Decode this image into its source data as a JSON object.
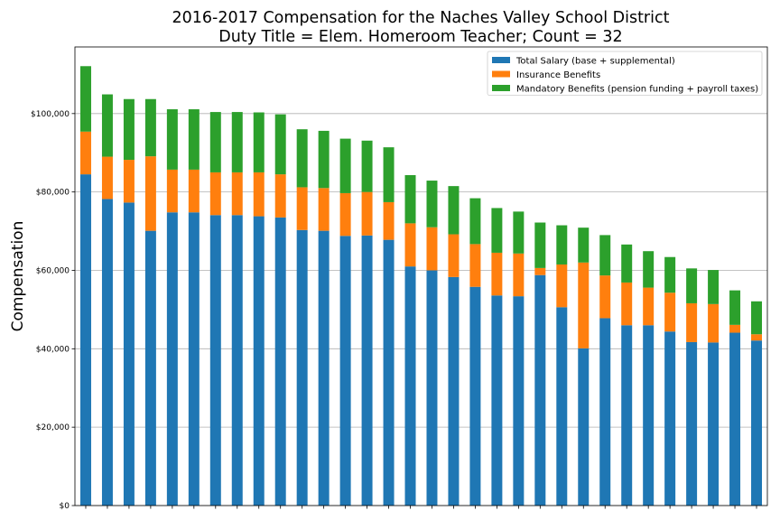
{
  "chart_data": {
    "type": "bar",
    "stacked": true,
    "title": "2016-2017 Compensation for the Naches Valley School District",
    "subtitle": "Duty Title = Elem. Homeroom Teacher; Count = 32",
    "xlabel": "",
    "ylabel": "Compensation",
    "ylim": [
      0,
      117000
    ],
    "yticks": [
      0,
      20000,
      40000,
      60000,
      80000,
      100000
    ],
    "ytick_labels": [
      "$0",
      "$20,000",
      "$40,000",
      "$60,000",
      "$80,000",
      "$100,000"
    ],
    "grid": "horizontal",
    "legend_position": "top-right",
    "series": [
      {
        "name": "Total Salary (base + supplemental)",
        "color": "#1f77b4",
        "values": [
          84500,
          78200,
          77300,
          70100,
          74800,
          74800,
          74100,
          74100,
          73800,
          73500,
          70300,
          70100,
          68800,
          68900,
          67800,
          61000,
          60000,
          58300,
          55800,
          53600,
          53400,
          58800,
          50600,
          40100,
          47800,
          46000,
          46000,
          44400,
          41700,
          41600,
          44100,
          42100
        ]
      },
      {
        "name": "Insurance Benefits",
        "color": "#ff7f0e",
        "values": [
          10900,
          10800,
          10900,
          19000,
          10900,
          10900,
          10900,
          10900,
          11200,
          11000,
          10900,
          10900,
          10900,
          11100,
          9600,
          11000,
          11000,
          10900,
          10900,
          10900,
          10900,
          1800,
          10900,
          21900,
          10900,
          10900,
          9600,
          9900,
          9900,
          9800,
          2000,
          1600
        ]
      },
      {
        "name": "Mandatory Benefits (pension funding + payroll taxes)",
        "color": "#2ca02c",
        "values": [
          16700,
          15900,
          15500,
          14600,
          15400,
          15400,
          15400,
          15400,
          15300,
          15300,
          14800,
          14600,
          13900,
          13100,
          14000,
          12300,
          11900,
          12300,
          11700,
          11400,
          10700,
          11600,
          10000,
          8900,
          10300,
          9700,
          9300,
          9100,
          8900,
          8700,
          8800,
          8400
        ]
      }
    ]
  }
}
